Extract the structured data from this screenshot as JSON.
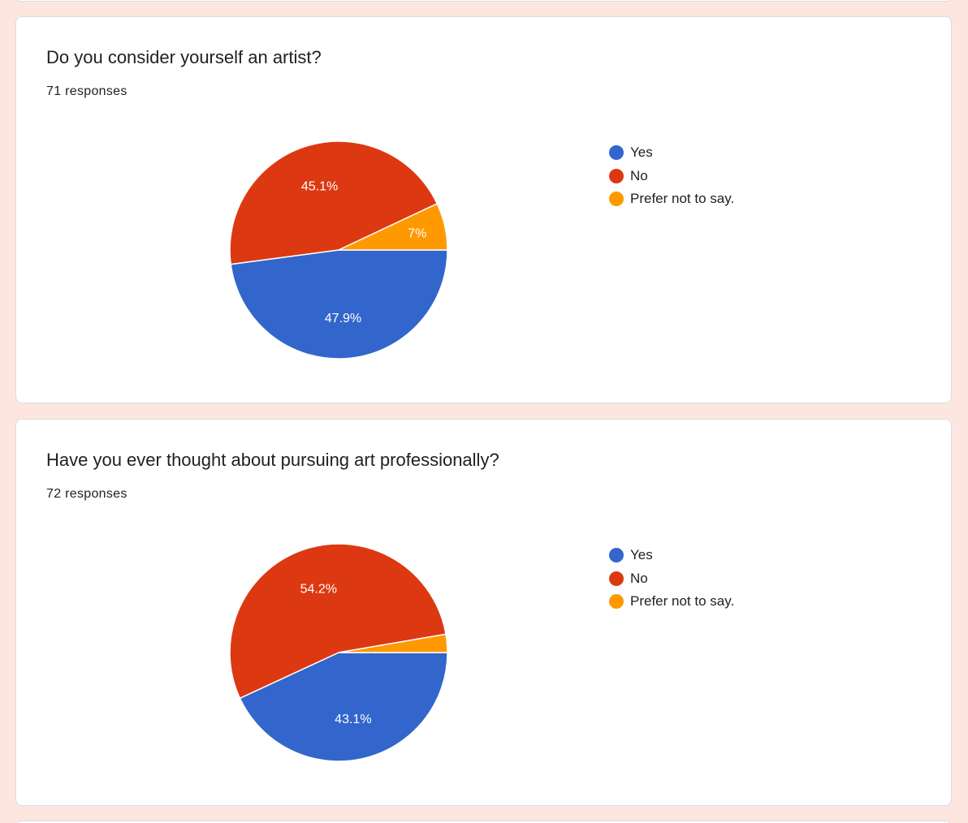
{
  "questions": [
    {
      "title": "Do you consider yourself an artist?",
      "responses": "71 responses",
      "legend": [
        {
          "label": "Yes",
          "color": "#3366cc"
        },
        {
          "label": "No",
          "color": "#dc3912"
        },
        {
          "label": "Prefer not to say.",
          "color": "#ff9900"
        }
      ]
    },
    {
      "title": "Have you ever thought about pursuing art professionally?",
      "responses": "72 responses",
      "legend": [
        {
          "label": "Yes",
          "color": "#3366cc"
        },
        {
          "label": "No",
          "color": "#dc3912"
        },
        {
          "label": "Prefer not to say.",
          "color": "#ff9900"
        }
      ]
    }
  ],
  "chart_data": [
    {
      "type": "pie",
      "categories": [
        "Yes",
        "No",
        "Prefer not to say."
      ],
      "values": [
        47.9,
        45.1,
        7
      ],
      "labels": [
        "47.9%",
        "45.1%",
        "7%"
      ],
      "colors": [
        "#3366cc",
        "#dc3912",
        "#ff9900"
      ],
      "legend_position": "right"
    },
    {
      "type": "pie",
      "categories": [
        "Yes",
        "No",
        "Prefer not to say."
      ],
      "values": [
        43.1,
        54.2,
        2.7
      ],
      "labels": [
        "43.1%",
        "54.2%",
        ""
      ],
      "colors": [
        "#3366cc",
        "#dc3912",
        "#ff9900"
      ],
      "legend_position": "right"
    }
  ]
}
